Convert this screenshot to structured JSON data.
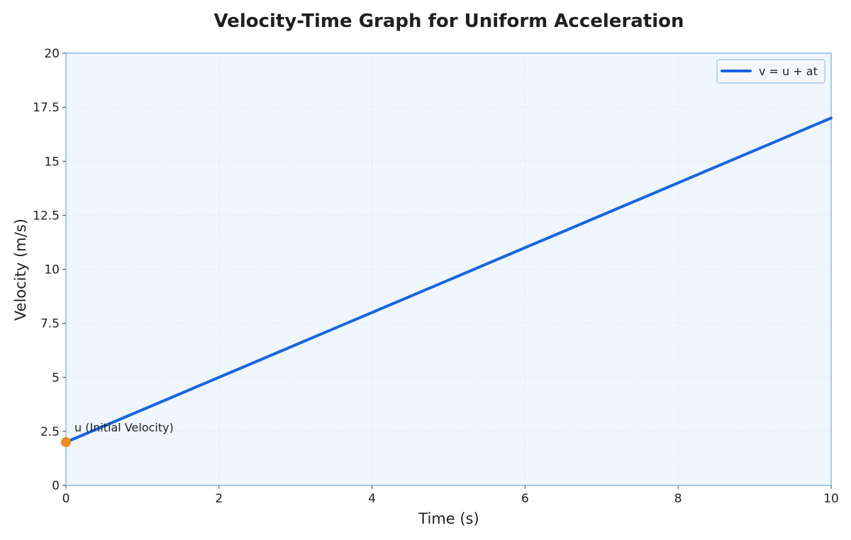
{
  "chart_data": {
    "type": "line",
    "title": "Velocity-Time Graph for Uniform Acceleration",
    "xlabel": "Time (s)",
    "ylabel": "Velocity (m/s)",
    "xlim": [
      0,
      10
    ],
    "ylim": [
      0,
      20
    ],
    "x_ticks": [
      "0",
      "2",
      "4",
      "6",
      "8",
      "10"
    ],
    "y_ticks": [
      "0",
      "2.5",
      "5",
      "7.5",
      "10",
      "12.5",
      "15",
      "17.5",
      "20"
    ],
    "grid": true,
    "legend_position": "top-right",
    "series": [
      {
        "name": "v = u + at",
        "x": [
          0,
          10
        ],
        "y": [
          2,
          17
        ],
        "color": "#1565e0"
      }
    ],
    "annotations": [
      {
        "text": "u (Initial Velocity)",
        "x": 0,
        "y": 2,
        "marker_color": "#f08a1c"
      }
    ]
  },
  "colors": {
    "plot_background": "#f0f6fe",
    "plot_border": "#a7c7f2",
    "grid": "#dde6f1"
  }
}
